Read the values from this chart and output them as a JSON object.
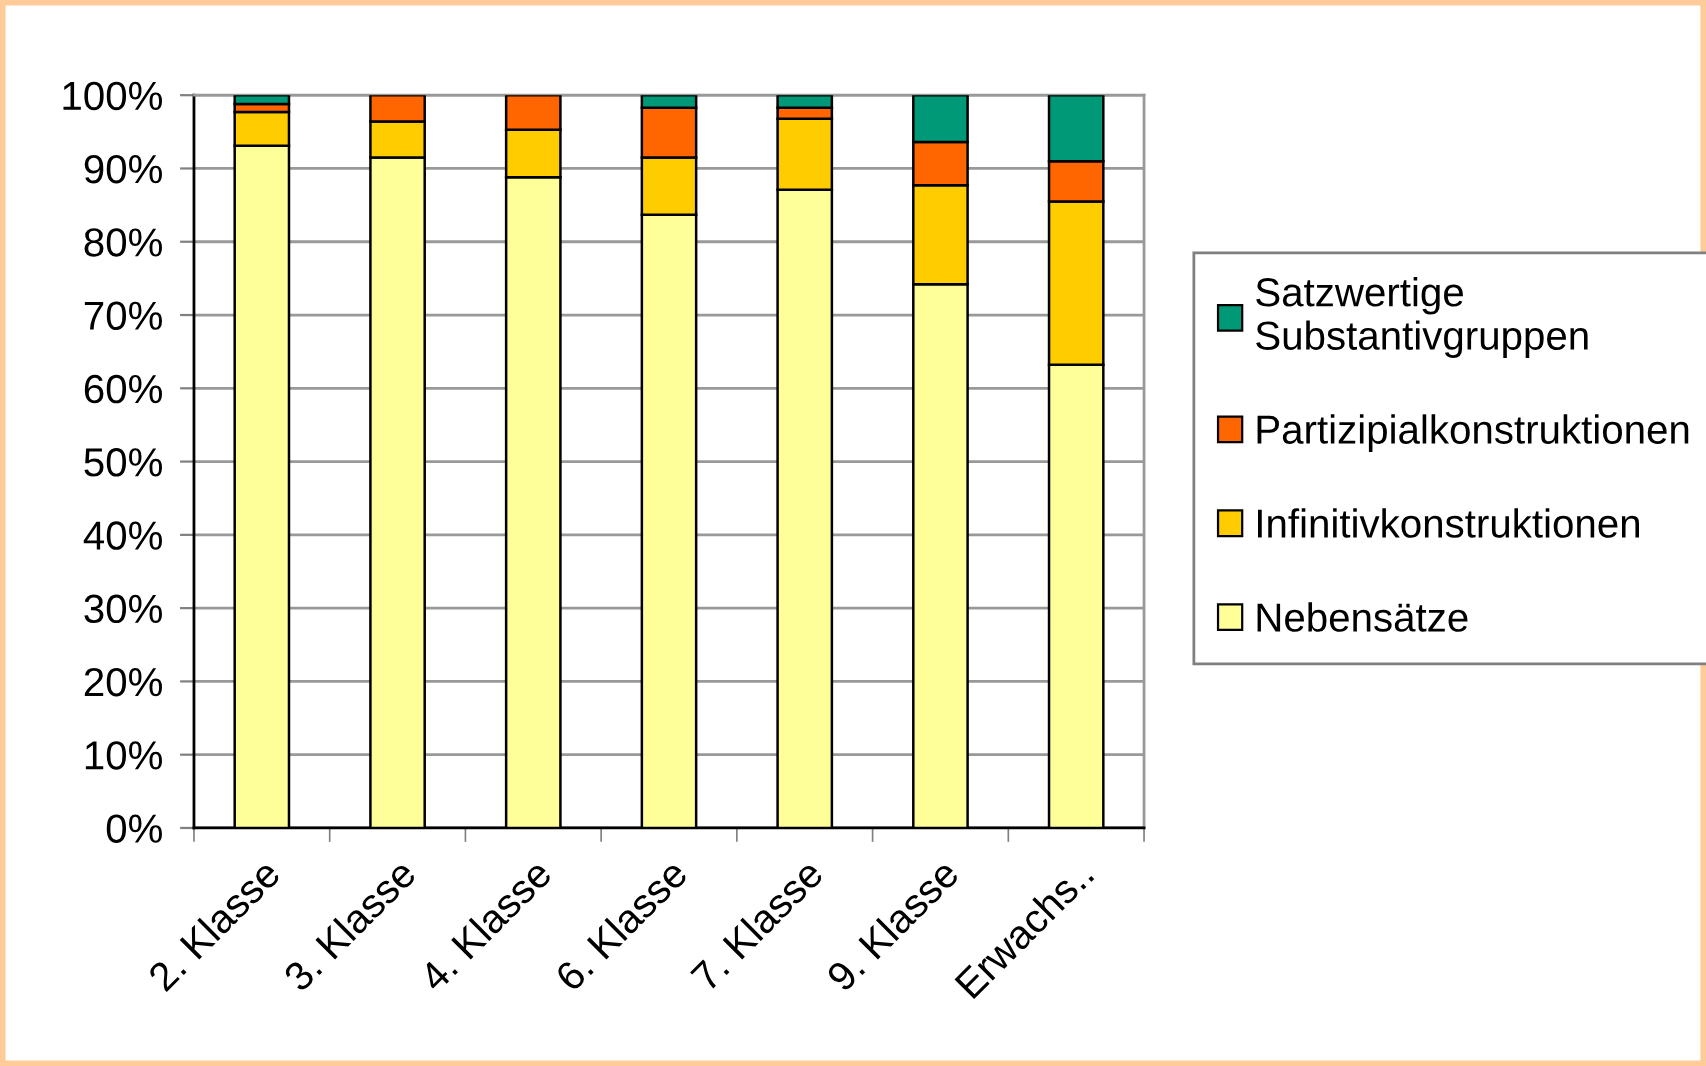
{
  "chart_data": {
    "type": "bar",
    "stacked": true,
    "categories": [
      "2. Klasse",
      "3. Klasse",
      "4. Klasse",
      "6. Klasse",
      "7. Klasse",
      "9. Klasse",
      "Erwachs.."
    ],
    "series": [
      {
        "name": "Nebensätze",
        "color": "#ffff99",
        "values": [
          93.1,
          91.5,
          88.8,
          83.7,
          87.1,
          74.2,
          63.2
        ]
      },
      {
        "name": "Infinitivkonstruktionen",
        "color": "#ffcc00",
        "values": [
          4.6,
          4.9,
          6.5,
          7.8,
          9.7,
          13.5,
          22.3
        ]
      },
      {
        "name": "Partizipialkonstruktionen",
        "color": "#ff6600",
        "values": [
          1.1,
          3.6,
          4.7,
          6.8,
          1.5,
          5.9,
          5.5
        ]
      },
      {
        "name": "Satzwertige\nSubstantivgruppen",
        "color": "#009977",
        "values": [
          1.2,
          null,
          null,
          1.7,
          1.7,
          6.4,
          9.0
        ]
      }
    ],
    "ylim": [
      0,
      100
    ],
    "yticks": [
      {
        "value": 0,
        "label": "0%"
      },
      {
        "value": 10,
        "label": "10%"
      },
      {
        "value": 20,
        "label": "20%"
      },
      {
        "value": 30,
        "label": "30%"
      },
      {
        "value": 40,
        "label": "40%"
      },
      {
        "value": 50,
        "label": "50%"
      },
      {
        "value": 60,
        "label": "60%"
      },
      {
        "value": 70,
        "label": "70%"
      },
      {
        "value": 80,
        "label": "80%"
      },
      {
        "value": 90,
        "label": "90%"
      },
      {
        "value": 100,
        "label": "100%"
      }
    ],
    "grid": "y",
    "legend": "right"
  }
}
